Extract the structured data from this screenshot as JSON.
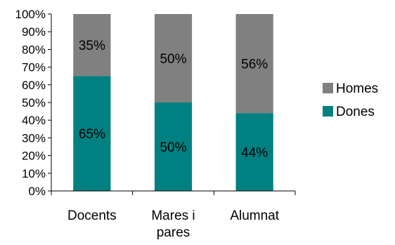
{
  "chart_data": {
    "type": "bar",
    "stacked": true,
    "percent_stacked": true,
    "categories": [
      "Docents",
      "Mares i pares",
      "Alumnat"
    ],
    "series": [
      {
        "name": "Dones",
        "color": "#008080",
        "values": [
          65,
          50,
          44
        ],
        "labels": [
          "65%",
          "50%",
          "44%"
        ]
      },
      {
        "name": "Homes",
        "color": "#808080",
        "values": [
          35,
          50,
          56
        ],
        "labels": [
          "35%",
          "50%",
          "56%"
        ]
      }
    ],
    "ylim": [
      0,
      100
    ],
    "yticks": [
      "0%",
      "10%",
      "20%",
      "30%",
      "40%",
      "50%",
      "60%",
      "70%",
      "80%",
      "90%",
      "100%"
    ],
    "grid": false,
    "legend_position": "right",
    "legend_order": [
      "Homes",
      "Dones"
    ]
  }
}
